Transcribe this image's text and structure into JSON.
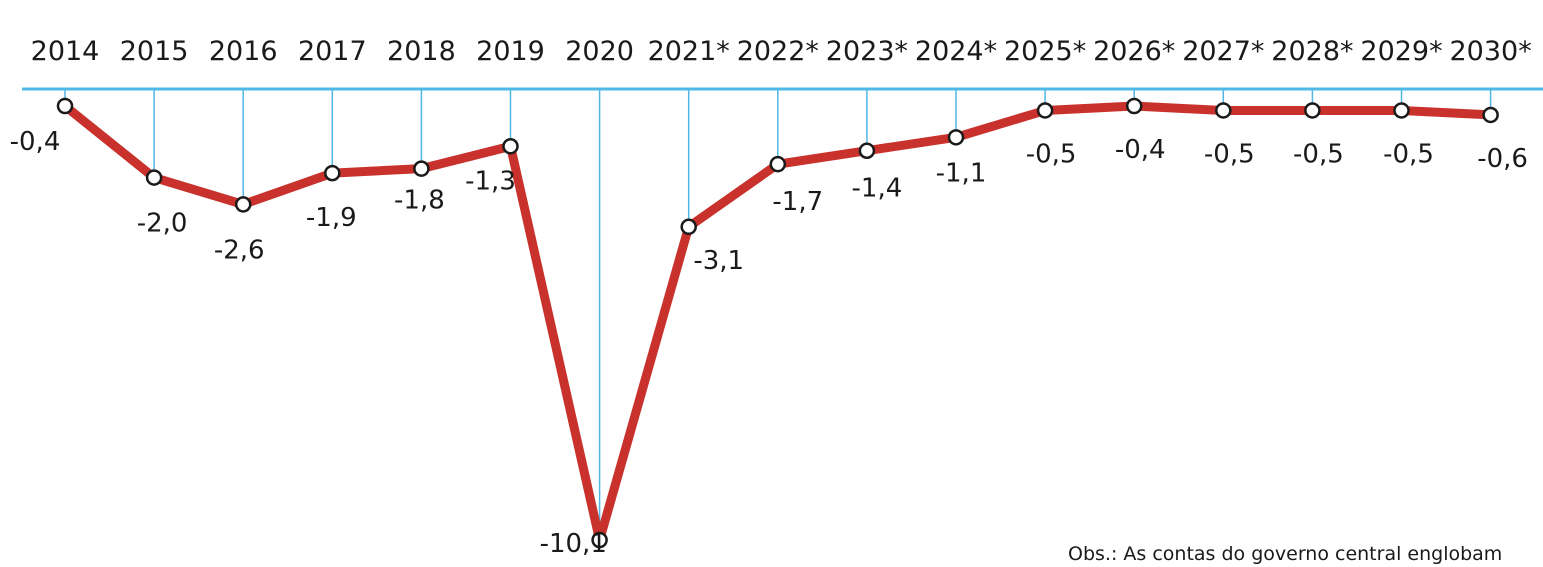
{
  "chart_data": {
    "type": "line",
    "title": "",
    "xlabel": "",
    "ylabel": "",
    "x": [
      "2014",
      "2015",
      "2016",
      "2017",
      "2018",
      "2019",
      "2020",
      "2021*",
      "2022*",
      "2023*",
      "2024*",
      "2025*",
      "2026*",
      "2027*",
      "2028*",
      "2029*",
      "2030*"
    ],
    "values": [
      -0.4,
      -2.0,
      -2.6,
      -1.9,
      -1.8,
      -1.3,
      -10.1,
      -3.1,
      -1.7,
      -1.4,
      -1.1,
      -0.5,
      -0.4,
      -0.5,
      -0.5,
      -0.5,
      -0.6
    ],
    "value_labels": [
      "-0,4",
      "-2,0",
      "-2,6",
      "-1,9",
      "-1,8",
      "-1,3",
      "-10,1",
      "-3,1",
      "-1,7",
      "-1,4",
      "-1,1",
      "-0,5",
      "-0,4",
      "-0,5",
      "-0,5",
      "-0,5",
      "-0,6"
    ],
    "ylim": [
      -10.1,
      0
    ],
    "grid": false,
    "legend": "none",
    "line_color": "#c9322c",
    "axis_color": "#4fb8e6",
    "note": "Obs.: As contas do governo central englobam"
  }
}
